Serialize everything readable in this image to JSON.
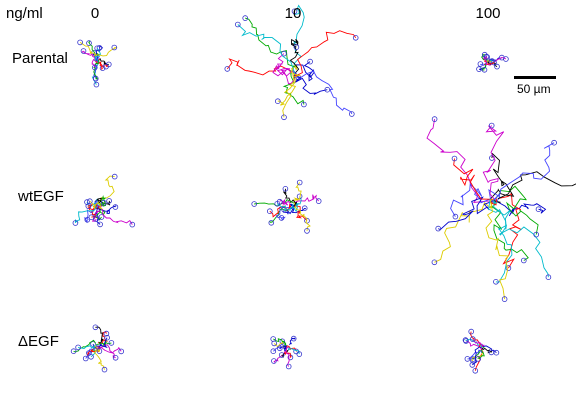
{
  "header": {
    "units": "ng/ml"
  },
  "columns": [
    "0",
    "10",
    "100"
  ],
  "rows": [
    "Parental",
    "wtEGF",
    "ΔEGF"
  ],
  "scale_bar": {
    "label": "50 µm",
    "length_um": 50
  },
  "track_colors": [
    "#0000cc",
    "#ff0000",
    "#00aa00",
    "#cc00cc",
    "#00bbcc",
    "#ddcc00",
    "#000000",
    "#4444ff"
  ],
  "endpoint_marker_color": "#3333cc"
}
